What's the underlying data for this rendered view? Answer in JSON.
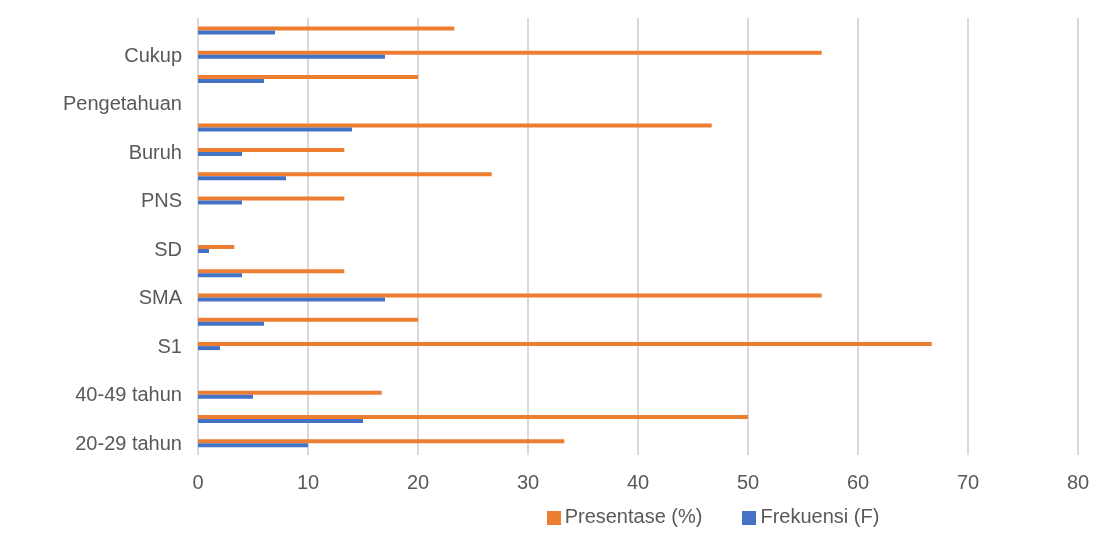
{
  "chart_data": {
    "type": "bar",
    "orientation": "horizontal",
    "categories": [
      null,
      "Cukup",
      null,
      "Pengetahuan",
      null,
      "Buruh",
      null,
      "PNS",
      null,
      "SD",
      null,
      "SMA",
      null,
      "S1",
      null,
      "40-49 tahun",
      null,
      "20-29 tahun"
    ],
    "series": [
      {
        "name": "Presentase (%)",
        "color": "#ed7d31",
        "values": [
          23.3,
          56.7,
          20,
          null,
          46.7,
          13.3,
          26.7,
          13.3,
          null,
          3.3,
          13.3,
          56.7,
          20,
          66.7,
          null,
          16.7,
          50,
          33.3
        ]
      },
      {
        "name": "Frekuensi (F)",
        "color": "#4472c4",
        "values": [
          7,
          17,
          6,
          null,
          14,
          4,
          8,
          4,
          null,
          1,
          4,
          17,
          6,
          2,
          null,
          5,
          15,
          10
        ]
      }
    ],
    "xlim": [
      0,
      80
    ],
    "xticks": [
      0,
      10,
      20,
      30,
      40,
      50,
      60,
      70,
      80
    ],
    "grid": "x",
    "legend": "bottom"
  }
}
